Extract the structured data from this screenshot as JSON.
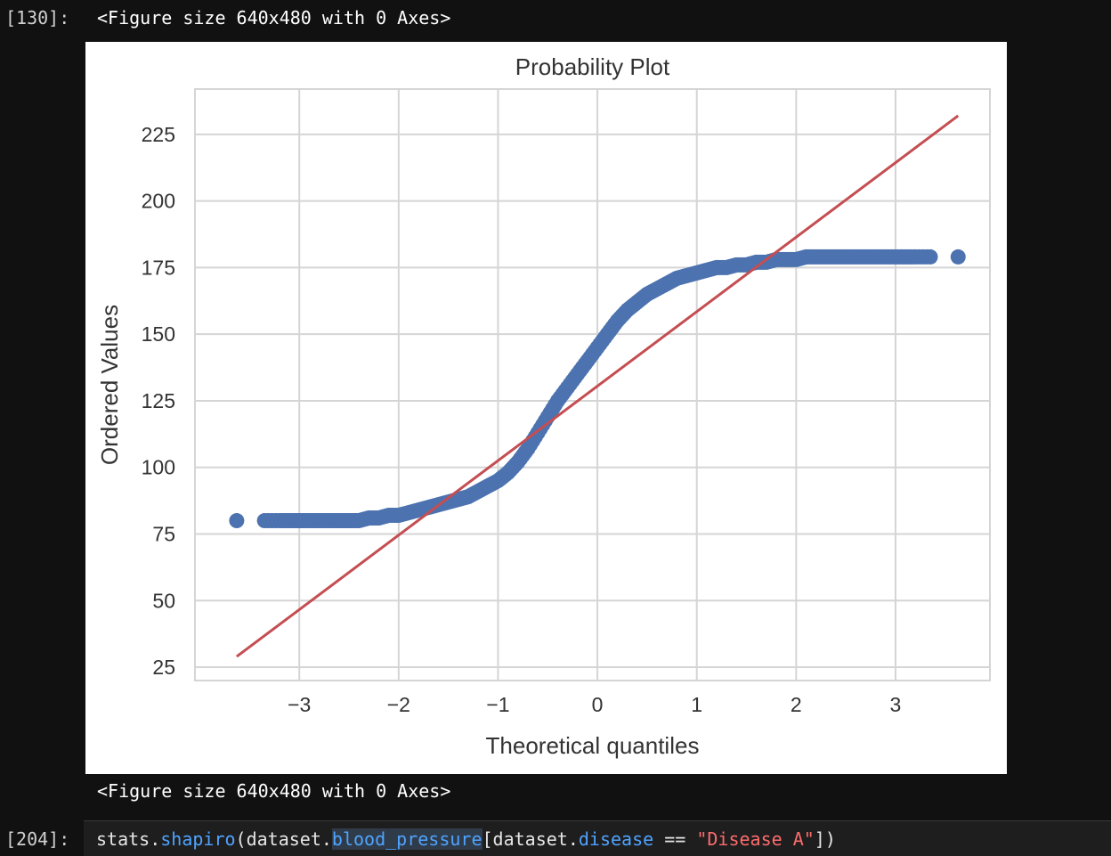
{
  "cell_130": {
    "prompt": "[130]:",
    "figure_text_top": "<Figure size 640x480 with 0 Axes>",
    "figure_text_bottom": "<Figure size 640x480 with 0 Axes>"
  },
  "cell_next": {
    "prompt": "[204]:",
    "code_tokens": [
      {
        "text": "stats.",
        "kind": "default"
      },
      {
        "text": "shapiro",
        "kind": "fn"
      },
      {
        "text": "(dataset.",
        "kind": "default"
      },
      {
        "text": "blood_pressure",
        "kind": "hl"
      },
      {
        "text": "[dataset.",
        "kind": "default"
      },
      {
        "text": "disease",
        "kind": "fn"
      },
      {
        "text": " == ",
        "kind": "default"
      },
      {
        "text": "\"Disease A\"",
        "kind": "str"
      },
      {
        "text": "])",
        "kind": "default"
      }
    ]
  },
  "colors": {
    "points": "#4c72b0",
    "fit_line": "#c44e52",
    "grid": "#d5d5d5",
    "text": "#333333"
  },
  "chart_data": {
    "type": "scatter",
    "title": "Probability Plot",
    "xlabel": "Theoretical quantiles",
    "ylabel": "Ordered Values",
    "xlim": [
      -4.05,
      3.95
    ],
    "ylim": [
      20,
      242
    ],
    "xticks": [
      -3,
      -2,
      -1,
      0,
      1,
      2,
      3
    ],
    "xtick_labels": [
      "−3",
      "−2",
      "−1",
      "0",
      "1",
      "2",
      "3"
    ],
    "yticks": [
      25,
      50,
      75,
      100,
      125,
      150,
      175,
      200,
      225
    ],
    "ytick_labels": [
      "25",
      "50",
      "75",
      "100",
      "125",
      "150",
      "175",
      "200",
      "225"
    ],
    "grid": true,
    "series": [
      {
        "kind": "points",
        "x": [
          -3.63,
          -3.35,
          -3.2,
          -3.1,
          -3.0,
          -2.9,
          -2.8,
          -2.7,
          -2.6,
          -2.5,
          -2.4,
          -2.3,
          -2.2,
          -2.1,
          -2.0,
          -1.9,
          -1.8,
          -1.7,
          -1.6,
          -1.5,
          -1.4,
          -1.3,
          -1.2,
          -1.1,
          -1.0,
          -0.9,
          -0.8,
          -0.7,
          -0.6,
          -0.5,
          -0.4,
          -0.3,
          -0.2,
          -0.1,
          0.0,
          0.1,
          0.2,
          0.3,
          0.4,
          0.5,
          0.6,
          0.7,
          0.8,
          0.9,
          1.0,
          1.1,
          1.2,
          1.3,
          1.4,
          1.5,
          1.6,
          1.7,
          1.8,
          1.9,
          2.0,
          2.1,
          2.2,
          2.3,
          2.4,
          2.5,
          2.6,
          2.7,
          2.8,
          2.9,
          3.0,
          3.1,
          3.2,
          3.35,
          3.63
        ],
        "y": [
          80,
          80,
          80,
          80,
          80,
          80,
          80,
          80,
          80,
          80,
          80,
          81,
          81,
          82,
          82,
          83,
          84,
          85,
          86,
          87,
          88,
          89,
          91,
          93,
          95,
          98,
          102,
          107,
          113,
          119,
          125,
          130,
          135,
          140,
          145,
          150,
          155,
          159,
          162,
          165,
          167,
          169,
          171,
          172,
          173,
          174,
          175,
          175,
          176,
          176,
          177,
          177,
          178,
          178,
          178,
          179,
          179,
          179,
          179,
          179,
          179,
          179,
          179,
          179,
          179,
          179,
          179,
          179,
          179
        ]
      },
      {
        "kind": "line",
        "x": [
          -3.63,
          3.63
        ],
        "y": [
          29,
          232
        ]
      }
    ]
  }
}
